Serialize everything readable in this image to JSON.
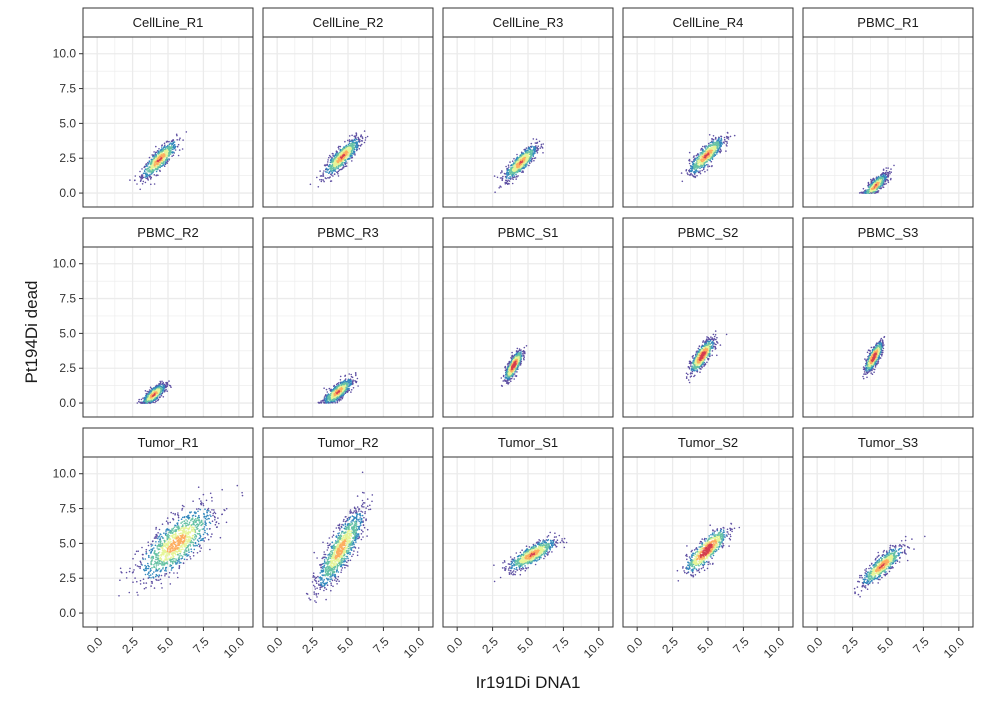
{
  "chart_data": {
    "type": "scatter",
    "xlabel": "Ir191Di DNA1",
    "ylabel": "Pt194Di dead",
    "xlim": [
      -1,
      11
    ],
    "ylim": [
      -1,
      11.2
    ],
    "x_ticks": [
      "0.0",
      "2.5",
      "5.0",
      "7.5",
      "10.0"
    ],
    "x_tick_values": [
      0,
      2.5,
      5,
      7.5,
      10
    ],
    "y_ticks": [
      "0.0",
      "2.5",
      "5.0",
      "7.5",
      "10.0"
    ],
    "y_tick_values": [
      0,
      2.5,
      5,
      7.5,
      10
    ],
    "grid": true,
    "facet_layout": "3 rows x 5 columns",
    "color_scale": "density (blue-green-yellow-red, spectral)",
    "colors": {
      "low_density": "#5e4fa2",
      "mid_low": "#3288bd",
      "mid": "#66c2a5",
      "mid_high": "#e6f598",
      "high": "#fdae61",
      "peak": "#d53e4f",
      "panel_border": "#333333",
      "strip_fill": "#ffffff",
      "grid": "#ebebeb"
    },
    "panels": [
      {
        "name": "CellLine_R1",
        "center": [
          4.4,
          2.4
        ],
        "spread": [
          0.6,
          0.65
        ],
        "slope": 1.0,
        "density": "medium"
      },
      {
        "name": "CellLine_R2",
        "center": [
          4.6,
          2.6
        ],
        "spread": [
          0.6,
          0.65
        ],
        "slope": 1.0,
        "density": "medium"
      },
      {
        "name": "CellLine_R3",
        "center": [
          4.5,
          2.2
        ],
        "spread": [
          0.55,
          0.6
        ],
        "slope": 1.0,
        "density": "medium"
      },
      {
        "name": "CellLine_R4",
        "center": [
          4.9,
          2.7
        ],
        "spread": [
          0.6,
          0.65
        ],
        "slope": 1.0,
        "density": "medium"
      },
      {
        "name": "PBMC_R1",
        "center": [
          4.1,
          0.5
        ],
        "spread": [
          0.4,
          0.45
        ],
        "slope": 1.0,
        "density": "medium",
        "y_floor": 0
      },
      {
        "name": "PBMC_R2",
        "center": [
          4.0,
          0.6
        ],
        "spread": [
          0.4,
          0.45
        ],
        "slope": 0.8,
        "density": "medium",
        "y_floor": 0
      },
      {
        "name": "PBMC_R3",
        "center": [
          4.3,
          0.8
        ],
        "spread": [
          0.5,
          0.5
        ],
        "slope": 0.8,
        "density": "medium",
        "y_floor": 0
      },
      {
        "name": "PBMC_S1",
        "center": [
          4.0,
          2.7
        ],
        "spread": [
          0.3,
          0.6
        ],
        "slope": 1.5,
        "density": "high"
      },
      {
        "name": "PBMC_S2",
        "center": [
          4.6,
          3.4
        ],
        "spread": [
          0.4,
          0.65
        ],
        "slope": 1.2,
        "density": "high"
      },
      {
        "name": "PBMC_S3",
        "center": [
          4.0,
          3.3
        ],
        "spread": [
          0.3,
          0.6
        ],
        "slope": 1.5,
        "density": "high"
      },
      {
        "name": "Tumor_R1",
        "center": [
          5.6,
          5.0
        ],
        "spread": [
          1.3,
          1.6
        ],
        "slope": 0.8,
        "density": "wide"
      },
      {
        "name": "Tumor_R2",
        "center": [
          4.5,
          4.6
        ],
        "spread": [
          0.8,
          1.4
        ],
        "slope": 1.6,
        "density": "wide"
      },
      {
        "name": "Tumor_S1",
        "center": [
          5.3,
          4.2
        ],
        "spread": [
          0.8,
          0.6
        ],
        "slope": 0.6,
        "density": "medium"
      },
      {
        "name": "Tumor_S2",
        "center": [
          4.9,
          4.5
        ],
        "spread": [
          0.7,
          0.8
        ],
        "slope": 1.0,
        "density": "high"
      },
      {
        "name": "Tumor_S3",
        "center": [
          4.6,
          3.4
        ],
        "spread": [
          0.7,
          0.65
        ],
        "slope": 0.9,
        "density": "medium"
      }
    ]
  }
}
